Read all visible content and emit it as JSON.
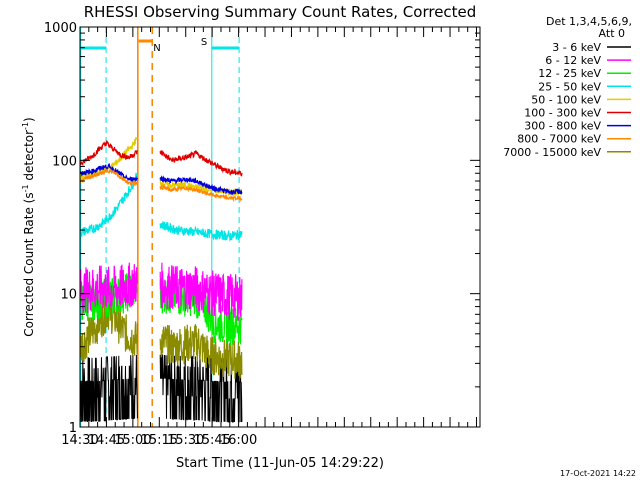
{
  "chart_data": {
    "type": "line",
    "title": "RHESSI Observing Summary Count Rates, Corrected",
    "xlabel": "Start Time (11-Jun-05 14:29:22)",
    "ylabel_main": "Corrected Count Rate (s",
    "ylabel_sup1": "-1",
    "ylabel_mid": " detector",
    "ylabel_sup2": "-1",
    "ylabel_end": ")",
    "yscale": "log",
    "ylim": [
      1,
      1000
    ],
    "y_ticks": [
      {
        "v": 1,
        "label": "1"
      },
      {
        "v": 10,
        "label": "10"
      },
      {
        "v": 100,
        "label": "100"
      },
      {
        "v": 1000,
        "label": "1000"
      }
    ],
    "xlim_min": [
      870,
      1097
    ],
    "x_ticks": [
      {
        "min": 870,
        "label": "14:30"
      },
      {
        "min": 885,
        "label": "14:45"
      },
      {
        "min": 900,
        "label": "15:00"
      },
      {
        "min": 915,
        "label": "15:15"
      },
      {
        "min": 930,
        "label": "15:30"
      },
      {
        "min": 945,
        "label": "15:45"
      },
      {
        "min": 960,
        "label": "16:00"
      }
    ],
    "legend_header": [
      "Det 1,3,4,5,6,9,",
      "Att 0"
    ],
    "series": [
      {
        "name": "3 - 6 keV",
        "color": "#000000"
      },
      {
        "name": "6 - 12 keV",
        "color": "#ff00ff"
      },
      {
        "name": "12 - 25 keV",
        "color": "#00ee00"
      },
      {
        "name": "25 - 50 keV",
        "color": "#00e5e5"
      },
      {
        "name": "50 - 100 keV",
        "color": "#e5cc00"
      },
      {
        "name": "100 - 300 keV",
        "color": "#dd0000"
      },
      {
        "name": "300 - 800 keV",
        "color": "#0000dd"
      },
      {
        "name": "800 - 7000 keV",
        "color": "#ff8800"
      },
      {
        "name": "7000 - 15000 keV",
        "color": "#8b8b00"
      }
    ],
    "series_points": [
      {
        "gap_start": 902.8,
        "gap_end": 915.5
      },
      [
        [
          870,
          2
        ],
        [
          878,
          2
        ],
        [
          886,
          2.2
        ],
        [
          893,
          2.4
        ],
        [
          902,
          2.6
        ],
        [
          916,
          2.6
        ],
        [
          925,
          2.4
        ],
        [
          934,
          2.3
        ],
        [
          940,
          2.2
        ],
        [
          946,
          2
        ],
        [
          955,
          1.9
        ],
        [
          962,
          1.9
        ]
      ],
      [
        [
          870,
          10.5
        ],
        [
          880,
          11
        ],
        [
          888,
          10.8
        ],
        [
          895,
          11.2
        ],
        [
          902,
          12
        ],
        [
          916,
          11.5
        ],
        [
          925,
          11
        ],
        [
          935,
          11
        ],
        [
          945,
          10
        ],
        [
          955,
          9.5
        ],
        [
          962,
          9.3
        ]
      ],
      [
        [
          870,
          8.5
        ],
        [
          880,
          9
        ],
        [
          888,
          9.5
        ],
        [
          895,
          10
        ],
        [
          902,
          11
        ],
        [
          916,
          10
        ],
        [
          925,
          9.5
        ],
        [
          934,
          9.5
        ],
        [
          940,
          8.5
        ],
        [
          946,
          6
        ],
        [
          955,
          5.8
        ],
        [
          962,
          5.8
        ]
      ],
      [
        [
          870,
          29
        ],
        [
          876,
          30
        ],
        [
          882,
          33
        ],
        [
          886,
          37
        ],
        [
          890,
          42
        ],
        [
          894,
          50
        ],
        [
          898,
          60
        ],
        [
          902,
          75
        ],
        [
          916,
          33
        ],
        [
          925,
          30
        ],
        [
          935,
          29
        ],
        [
          945,
          28
        ],
        [
          955,
          27
        ],
        [
          962,
          28
        ]
      ],
      [
        [
          870,
          75
        ],
        [
          878,
          78
        ],
        [
          884,
          85
        ],
        [
          888,
          90
        ],
        [
          892,
          100
        ],
        [
          896,
          115
        ],
        [
          900,
          130
        ],
        [
          902,
          145
        ],
        [
          916,
          68
        ],
        [
          922,
          65
        ],
        [
          930,
          65
        ],
        [
          938,
          62
        ],
        [
          945,
          60
        ],
        [
          955,
          58
        ],
        [
          962,
          57
        ]
      ],
      [
        [
          870,
          95
        ],
        [
          876,
          105
        ],
        [
          882,
          125
        ],
        [
          885,
          135
        ],
        [
          888,
          125
        ],
        [
          893,
          110
        ],
        [
          898,
          105
        ],
        [
          902,
          115
        ],
        [
          916,
          115
        ],
        [
          922,
          100
        ],
        [
          930,
          105
        ],
        [
          936,
          112
        ],
        [
          942,
          100
        ],
        [
          948,
          90
        ],
        [
          955,
          82
        ],
        [
          962,
          80
        ]
      ],
      [
        [
          870,
          80
        ],
        [
          876,
          82
        ],
        [
          882,
          88
        ],
        [
          886,
          90
        ],
        [
          890,
          84
        ],
        [
          895,
          75
        ],
        [
          898,
          72
        ],
        [
          902,
          73
        ],
        [
          916,
          73
        ],
        [
          922,
          70
        ],
        [
          930,
          72
        ],
        [
          936,
          70
        ],
        [
          945,
          62
        ],
        [
          955,
          58
        ],
        [
          962,
          58
        ]
      ],
      [
        [
          870,
          70
        ],
        [
          876,
          75
        ],
        [
          882,
          80
        ],
        [
          886,
          84
        ],
        [
          890,
          80
        ],
        [
          895,
          72
        ],
        [
          898,
          67
        ],
        [
          902,
          68
        ],
        [
          916,
          63
        ],
        [
          922,
          60
        ],
        [
          930,
          62
        ],
        [
          936,
          60
        ],
        [
          945,
          55
        ],
        [
          955,
          52
        ],
        [
          962,
          52
        ]
      ],
      [
        [
          870,
          4
        ],
        [
          876,
          5
        ],
        [
          882,
          6.5
        ],
        [
          886,
          7.5
        ],
        [
          890,
          6.5
        ],
        [
          896,
          5
        ],
        [
          902,
          4.5
        ],
        [
          916,
          4.5
        ],
        [
          922,
          4
        ],
        [
          930,
          4.2
        ],
        [
          937,
          4.3
        ],
        [
          943,
          3.5
        ],
        [
          950,
          3.3
        ],
        [
          962,
          3.2
        ]
      ]
    ],
    "annotations": [
      {
        "label": "N",
        "color": "#00e5e5"
      },
      {
        "label": "S",
        "color": "#ff8800"
      }
    ],
    "footer_date": "17-Oct-2021 14:22"
  }
}
